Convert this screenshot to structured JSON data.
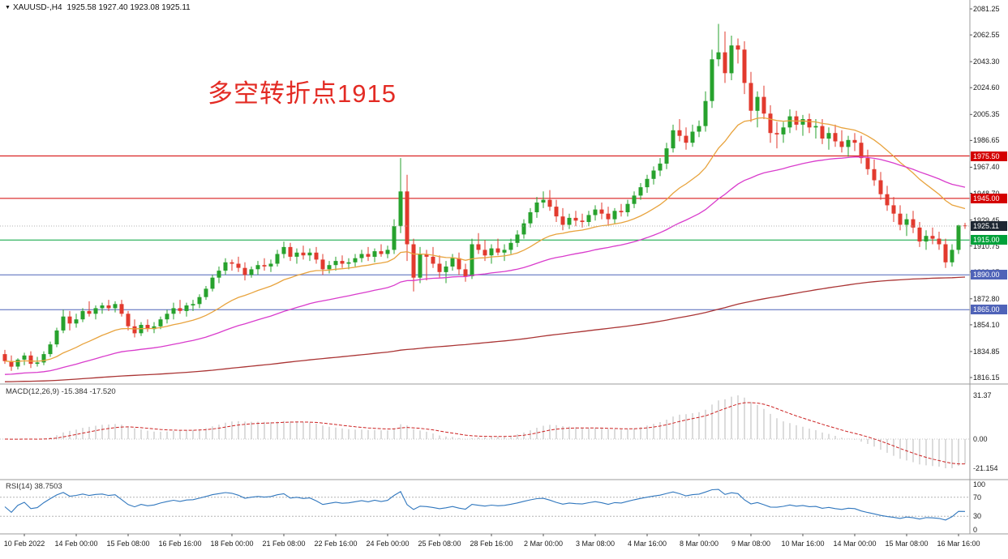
{
  "header": {
    "marker": "▼",
    "symbol": "XAUUSD-,H4",
    "ohlc": "1925.58 1927.40 1923.08 1925.11"
  },
  "annotation": {
    "text": "多空转折点1915",
    "color": "#e32b24"
  },
  "panels": {
    "macd": {
      "label": "MACD(12,26,9) -15.384 -17.520",
      "axis": [
        "31.37",
        "0.00",
        "-21.154"
      ]
    },
    "rsi": {
      "label": "RSI(14) 38.7503",
      "axis": [
        "100",
        "70",
        "30",
        "0"
      ]
    }
  },
  "price_axis": {
    "labels": [
      "2081.25",
      "2062.55",
      "2043.30",
      "2024.60",
      "2005.35",
      "1986.65",
      "1967.40",
      "1948.70",
      "1929.45",
      "1910.75",
      "1892.05",
      "1872.80",
      "1854.10",
      "1834.85",
      "1816.15"
    ]
  },
  "time_axis": {
    "first_index": 3,
    "step": 8,
    "labels": [
      "10 Feb 2022",
      "14 Feb 00:00",
      "15 Feb 08:00",
      "16 Feb 16:00",
      "18 Feb 00:00",
      "21 Feb 08:00",
      "22 Feb 16:00",
      "24 Feb 00:00",
      "25 Feb 08:00",
      "28 Feb 16:00",
      "2 Mar 00:00",
      "3 Mar 08:00",
      "4 Mar 16:00",
      "8 Mar 00:00",
      "9 Mar 08:00",
      "10 Mar 16:00",
      "14 Mar 00:00",
      "15 Mar 08:00",
      "16 Mar 16:00"
    ]
  },
  "levels": [
    {
      "price": 1975.5,
      "label": "1975.50",
      "color": "#d40000"
    },
    {
      "price": 1945.0,
      "label": "1945.00",
      "color": "#d40000"
    },
    {
      "price": 1915.0,
      "label": "1915.00",
      "color": "#00a13a"
    },
    {
      "price": 1890.0,
      "label": "1890.00",
      "color": "#4f63b8"
    },
    {
      "price": 1865.0,
      "label": "1865.00",
      "color": "#4f63b8"
    }
  ],
  "current_price": {
    "value": 1925.11,
    "label": "1925.11",
    "color": "#1e2732"
  },
  "chart_data": {
    "type": "candlestick",
    "symbol": "XAUUSD",
    "timeframe": "H4",
    "title": "XAUUSD-,H4",
    "ylim": [
      1816.15,
      2081.25
    ],
    "grid": false,
    "colors": {
      "bull": "#27a22d",
      "bear": "#e23a2e"
    },
    "ohlc": [
      [
        1833,
        1836,
        1826,
        1828
      ],
      [
        1828,
        1832,
        1821,
        1824
      ],
      [
        1824,
        1830,
        1822,
        1829
      ],
      [
        1829,
        1834,
        1825,
        1832
      ],
      [
        1832,
        1835,
        1823,
        1826
      ],
      [
        1826,
        1831,
        1824,
        1827
      ],
      [
        1827,
        1835,
        1825,
        1833
      ],
      [
        1833,
        1842,
        1831,
        1840
      ],
      [
        1840,
        1852,
        1838,
        1850
      ],
      [
        1850,
        1865,
        1848,
        1860
      ],
      [
        1860,
        1864,
        1850,
        1855
      ],
      [
        1855,
        1862,
        1852,
        1858
      ],
      [
        1858,
        1866,
        1856,
        1864
      ],
      [
        1864,
        1871,
        1860,
        1862
      ],
      [
        1862,
        1868,
        1858,
        1866
      ],
      [
        1866,
        1870,
        1862,
        1868
      ],
      [
        1868,
        1872,
        1864,
        1866
      ],
      [
        1866,
        1871,
        1863,
        1869
      ],
      [
        1869,
        1872,
        1860,
        1862
      ],
      [
        1862,
        1864,
        1850,
        1853
      ],
      [
        1853,
        1858,
        1845,
        1848
      ],
      [
        1848,
        1856,
        1846,
        1854
      ],
      [
        1854,
        1858,
        1849,
        1851
      ],
      [
        1851,
        1856,
        1848,
        1853
      ],
      [
        1853,
        1860,
        1851,
        1858
      ],
      [
        1858,
        1865,
        1855,
        1862
      ],
      [
        1862,
        1870,
        1858,
        1866
      ],
      [
        1866,
        1872,
        1862,
        1864
      ],
      [
        1864,
        1870,
        1860,
        1868
      ],
      [
        1868,
        1872,
        1864,
        1869
      ],
      [
        1869,
        1876,
        1866,
        1874
      ],
      [
        1874,
        1882,
        1872,
        1880
      ],
      [
        1880,
        1890,
        1878,
        1888
      ],
      [
        1888,
        1896,
        1884,
        1893
      ],
      [
        1893,
        1902,
        1890,
        1899
      ],
      [
        1899,
        1901,
        1893,
        1898
      ],
      [
        1898,
        1903,
        1892,
        1895
      ],
      [
        1895,
        1899,
        1886,
        1890
      ],
      [
        1890,
        1896,
        1888,
        1894
      ],
      [
        1894,
        1900,
        1890,
        1897
      ],
      [
        1897,
        1902,
        1893,
        1896
      ],
      [
        1896,
        1901,
        1892,
        1898
      ],
      [
        1898,
        1908,
        1896,
        1905
      ],
      [
        1905,
        1914,
        1902,
        1910
      ],
      [
        1910,
        1913,
        1900,
        1903
      ],
      [
        1903,
        1909,
        1898,
        1906
      ],
      [
        1906,
        1911,
        1901,
        1904
      ],
      [
        1904,
        1909,
        1900,
        1906
      ],
      [
        1906,
        1910,
        1898,
        1901
      ],
      [
        1901,
        1905,
        1890,
        1894
      ],
      [
        1894,
        1900,
        1891,
        1897
      ],
      [
        1897,
        1903,
        1893,
        1900
      ],
      [
        1900,
        1904,
        1895,
        1898
      ],
      [
        1898,
        1902,
        1894,
        1899
      ],
      [
        1899,
        1905,
        1896,
        1902
      ],
      [
        1902,
        1908,
        1899,
        1905
      ],
      [
        1905,
        1910,
        1900,
        1903
      ],
      [
        1903,
        1909,
        1899,
        1907
      ],
      [
        1907,
        1912,
        1903,
        1905
      ],
      [
        1905,
        1911,
        1902,
        1908
      ],
      [
        1908,
        1930,
        1905,
        1925
      ],
      [
        1925,
        1974,
        1920,
        1950
      ],
      [
        1950,
        1962,
        1900,
        1912
      ],
      [
        1912,
        1916,
        1878,
        1888
      ],
      [
        1888,
        1910,
        1884,
        1905
      ],
      [
        1905,
        1908,
        1886,
        1903
      ],
      [
        1903,
        1910,
        1895,
        1898
      ],
      [
        1898,
        1904,
        1888,
        1892
      ],
      [
        1892,
        1900,
        1884,
        1896
      ],
      [
        1896,
        1905,
        1893,
        1902
      ],
      [
        1902,
        1906,
        1890,
        1894
      ],
      [
        1894,
        1898,
        1885,
        1889
      ],
      [
        1889,
        1916,
        1887,
        1912
      ],
      [
        1912,
        1920,
        1905,
        1908
      ],
      [
        1908,
        1915,
        1900,
        1904
      ],
      [
        1904,
        1912,
        1898,
        1909
      ],
      [
        1909,
        1916,
        1904,
        1906
      ],
      [
        1906,
        1912,
        1900,
        1908
      ],
      [
        1908,
        1916,
        1905,
        1913
      ],
      [
        1913,
        1922,
        1910,
        1919
      ],
      [
        1919,
        1930,
        1916,
        1927
      ],
      [
        1927,
        1938,
        1924,
        1935
      ],
      [
        1935,
        1946,
        1931,
        1942
      ],
      [
        1942,
        1950,
        1938,
        1944
      ],
      [
        1944,
        1951,
        1936,
        1939
      ],
      [
        1939,
        1944,
        1928,
        1932
      ],
      [
        1932,
        1938,
        1922,
        1926
      ],
      [
        1926,
        1934,
        1923,
        1931
      ],
      [
        1931,
        1936,
        1925,
        1929
      ],
      [
        1929,
        1934,
        1924,
        1928
      ],
      [
        1928,
        1936,
        1925,
        1933
      ],
      [
        1933,
        1940,
        1929,
        1937
      ],
      [
        1937,
        1942,
        1930,
        1934
      ],
      [
        1934,
        1939,
        1926,
        1930
      ],
      [
        1930,
        1938,
        1927,
        1936
      ],
      [
        1936,
        1941,
        1932,
        1935
      ],
      [
        1935,
        1944,
        1932,
        1941
      ],
      [
        1941,
        1950,
        1938,
        1947
      ],
      [
        1947,
        1956,
        1944,
        1953
      ],
      [
        1953,
        1962,
        1949,
        1959
      ],
      [
        1959,
        1968,
        1955,
        1965
      ],
      [
        1965,
        1974,
        1961,
        1970
      ],
      [
        1970,
        1985,
        1966,
        1981
      ],
      [
        1981,
        1998,
        1978,
        1994
      ],
      [
        1994,
        2002,
        1986,
        1990
      ],
      [
        1990,
        1996,
        1980,
        1985
      ],
      [
        1985,
        1998,
        1982,
        1993
      ],
      [
        1993,
        2001,
        1989,
        1997
      ],
      [
        1997,
        2022,
        1993,
        2015
      ],
      [
        2015,
        2052,
        2010,
        2045
      ],
      [
        2045,
        2070.5,
        2040,
        2050
      ],
      [
        2050,
        2065,
        2028,
        2035
      ],
      [
        2035,
        2062,
        2030,
        2055
      ],
      [
        2055,
        2060,
        2042,
        2052
      ],
      [
        2052,
        2058,
        2020,
        2028
      ],
      [
        2028,
        2036,
        2000,
        2008
      ],
      [
        2008,
        2022,
        1996,
        2018
      ],
      [
        2018,
        2026,
        2002,
        2006
      ],
      [
        2006,
        2012,
        1985,
        1992
      ],
      [
        1992,
        2000,
        1981,
        1991
      ],
      [
        1991,
        2000,
        1985,
        1996
      ],
      [
        1996,
        2009,
        1992,
        2004
      ],
      [
        2004,
        2008,
        1994,
        1998
      ],
      [
        1998,
        2005,
        1990,
        2002
      ],
      [
        2002,
        2006,
        1992,
        1996
      ],
      [
        1996,
        2002,
        1988,
        1997
      ],
      [
        1997,
        2002,
        1984,
        1988
      ],
      [
        1988,
        1996,
        1980,
        1992
      ],
      [
        1992,
        1998,
        1982,
        1986
      ],
      [
        1986,
        1994,
        1978,
        1982
      ],
      [
        1982,
        1990,
        1975,
        1987
      ],
      [
        1987,
        1992,
        1979,
        1985
      ],
      [
        1985,
        1990,
        1970,
        1974
      ],
      [
        1974,
        1980,
        1962,
        1966
      ],
      [
        1966,
        1973,
        1954,
        1958
      ],
      [
        1958,
        1964,
        1944,
        1948
      ],
      [
        1948,
        1954,
        1936,
        1940
      ],
      [
        1940,
        1946,
        1928,
        1934
      ],
      [
        1934,
        1940,
        1922,
        1926
      ],
      [
        1926,
        1934,
        1918,
        1930
      ],
      [
        1930,
        1936,
        1920,
        1924
      ],
      [
        1924,
        1928,
        1910,
        1914
      ],
      [
        1914,
        1922,
        1908,
        1918
      ],
      [
        1918,
        1924,
        1912,
        1916
      ],
      [
        1916,
        1921,
        1908,
        1912
      ],
      [
        1912,
        1916,
        1895,
        1899
      ],
      [
        1899,
        1912,
        1896,
        1908
      ],
      [
        1908,
        1926,
        1905,
        1925.58
      ],
      [
        1925.58,
        1927.4,
        1923.08,
        1925.11
      ]
    ],
    "moving_averages": [
      {
        "name": "ma-fast",
        "period": 21,
        "color": "#e8a33d"
      },
      {
        "name": "ma-mid",
        "period": 55,
        "seed": 1818,
        "color": "#d93ccc"
      },
      {
        "name": "ma-slow",
        "period": 300,
        "seed": 1813,
        "color": "#aa3434"
      }
    ],
    "indicators": {
      "macd": {
        "fast": 12,
        "slow": 26,
        "signal": 9,
        "current_main": -15.384,
        "current_signal": -17.52,
        "ylim": [
          -21.154,
          31.37
        ],
        "histogram_color": "#b9b9b9",
        "signal_color": "#cc2222"
      },
      "rsi": {
        "period": 14,
        "current": 38.7503,
        "levels": [
          70,
          30
        ],
        "ylim": [
          0,
          100
        ],
        "color": "#3077be"
      }
    }
  }
}
